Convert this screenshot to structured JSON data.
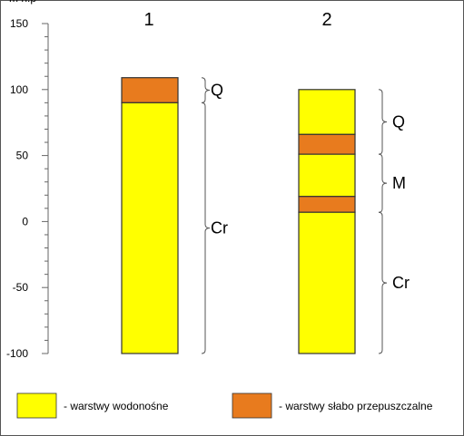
{
  "chart_data": {
    "type": "stratigraphic-columns",
    "y_axis": {
      "ylim": [
        -100,
        150
      ],
      "ticks": [
        150,
        100,
        50,
        0,
        -50,
        -100
      ],
      "minor_step": 10,
      "partial_top_label": "m n.p"
    },
    "columns": [
      {
        "label": "1",
        "layers": [
          {
            "from": 90,
            "to": 109,
            "type": "weak"
          },
          {
            "from": -100,
            "to": 90,
            "type": "aquifer"
          }
        ],
        "units": [
          {
            "label": "Q",
            "from": 90,
            "to": 109
          },
          {
            "label": "Cr",
            "from": -100,
            "to": 90
          }
        ]
      },
      {
        "label": "2",
        "layers": [
          {
            "from": 66,
            "to": 100,
            "type": "aquifer"
          },
          {
            "from": 51,
            "to": 66,
            "type": "weak"
          },
          {
            "from": 19,
            "to": 51,
            "type": "aquifer"
          },
          {
            "from": 7,
            "to": 19,
            "type": "weak"
          },
          {
            "from": -100,
            "to": 7,
            "type": "aquifer"
          }
        ],
        "units": [
          {
            "label": "Q",
            "from": 51,
            "to": 100
          },
          {
            "label": "M",
            "from": 7,
            "to": 51
          },
          {
            "label": "Cr",
            "from": -100,
            "to": 7
          }
        ]
      }
    ],
    "colors": {
      "aquifer": "#ffff00",
      "weak": "#e87b1e",
      "outline": "#333333"
    },
    "legend": [
      {
        "type": "aquifer",
        "label": "- warstwy wodonośne"
      },
      {
        "type": "weak",
        "label": "- warstwy słabo przepuszczalne"
      }
    ]
  }
}
